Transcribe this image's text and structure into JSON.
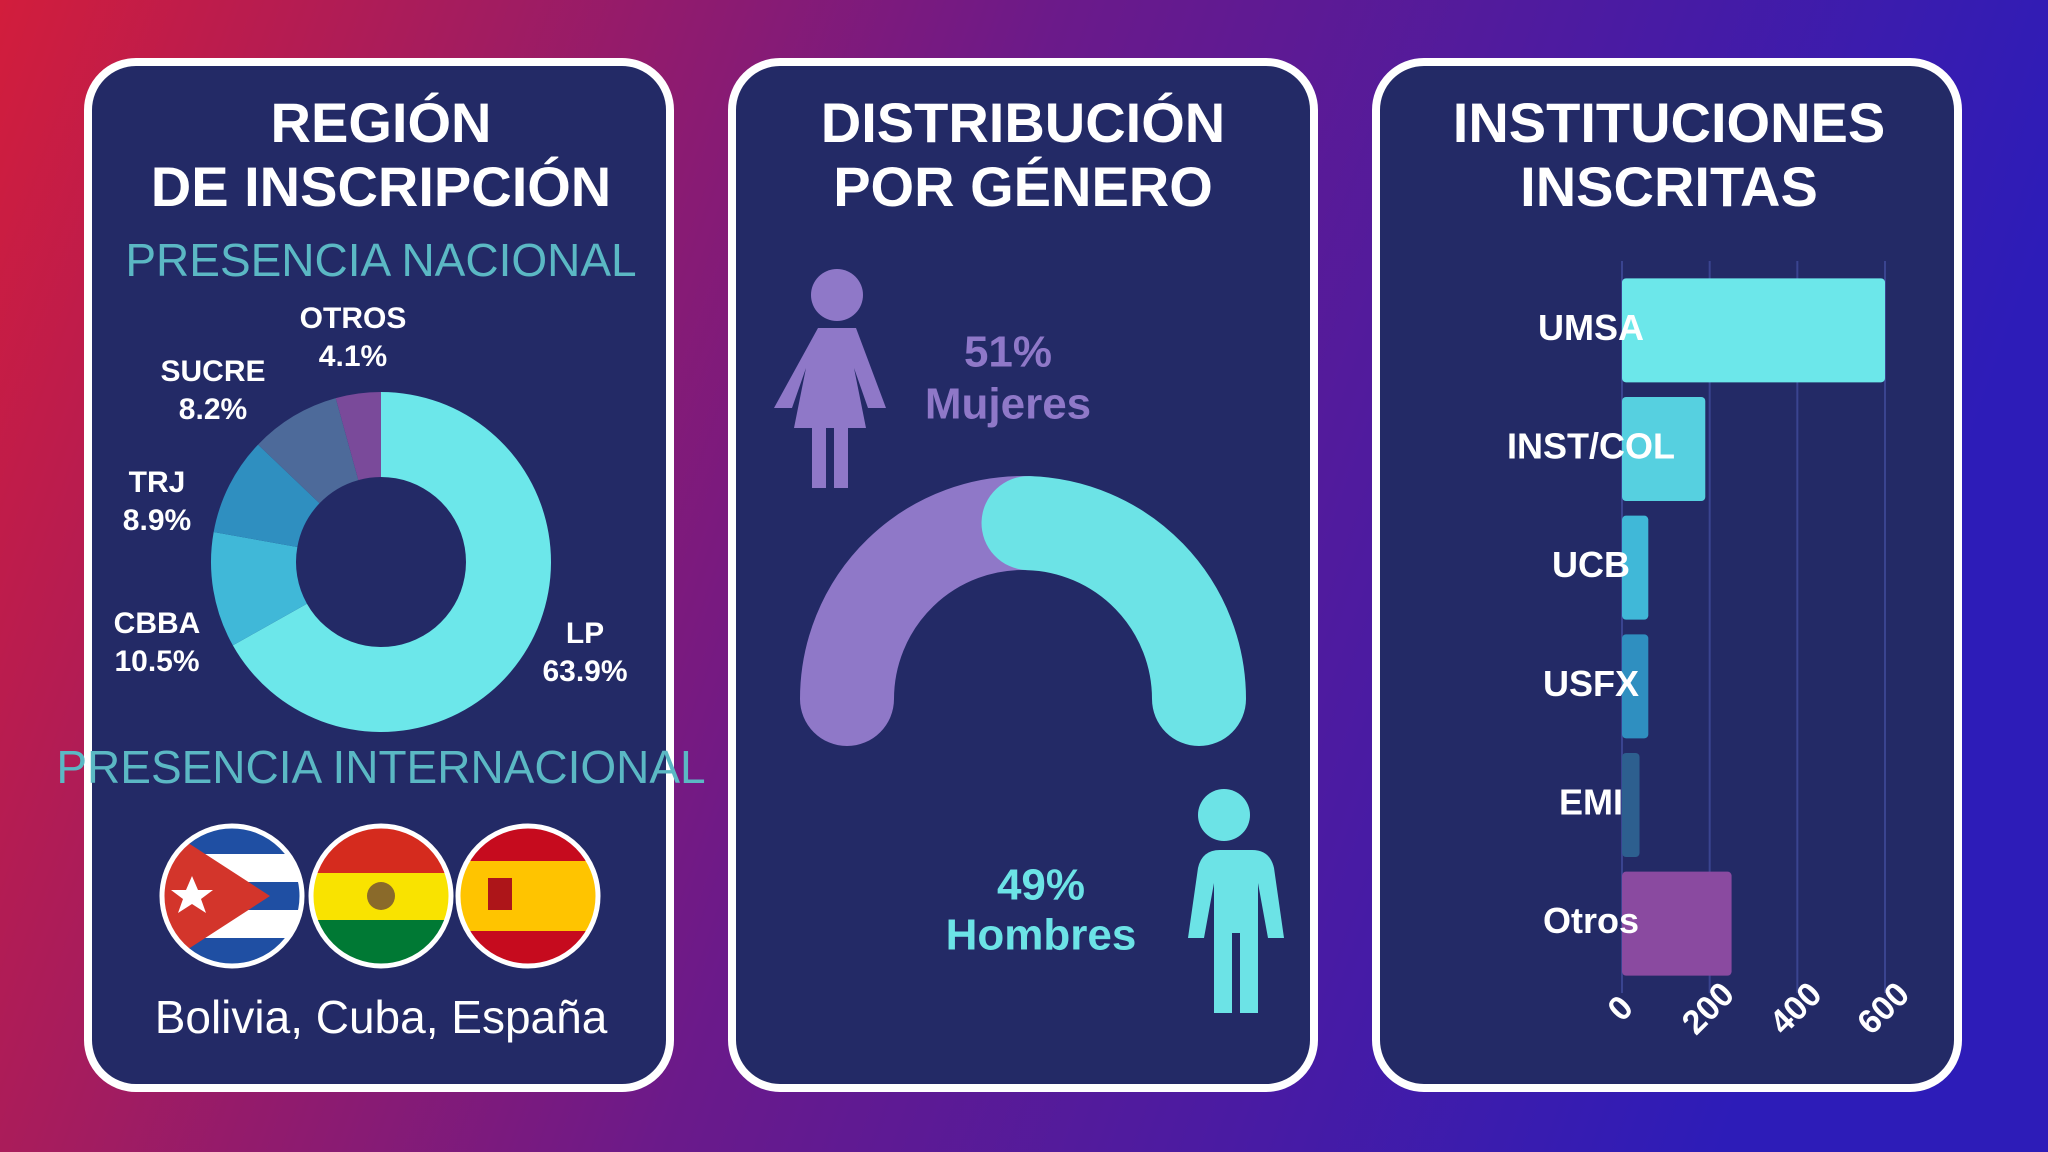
{
  "chart_data": [
    {
      "type": "donut",
      "title": [
        "REGIÓN",
        "DE INSCRIPCIÓN"
      ],
      "subtitle": "PRESENCIA NACIONAL",
      "categories": [
        "LP",
        "CBBA",
        "TRJ",
        "SUCRE",
        "OTROS"
      ],
      "values": [
        63.9,
        10.5,
        8.9,
        8.2,
        4.1
      ],
      "value_labels": [
        "63.9%",
        "10.5%",
        "8.9%",
        "8.2%",
        "4.1%"
      ],
      "colors": [
        "#6ce7ea",
        "#40b8d8",
        "#2f8fc0",
        "#4d6a9a",
        "#7a4a9a"
      ],
      "annotation": "PRESENCIA INTERNACIONAL",
      "countries": "Bolivia, Cuba, España"
    },
    {
      "type": "gender",
      "title": [
        "DISTRIBUCIÓN",
        "POR GÉNERO"
      ],
      "categories": [
        "Mujeres",
        "Hombres"
      ],
      "values": [
        51,
        49
      ],
      "value_labels": [
        "51%",
        "49%"
      ],
      "colors": [
        "#8f78c8",
        "#6ce3e6"
      ]
    },
    {
      "type": "hbar",
      "title": [
        "INSTITUCIONES",
        "INSCRITAS"
      ],
      "categories": [
        "UMSA",
        "INST/COL",
        "UCB",
        "USFX",
        "EMI",
        "Otros"
      ],
      "values": [
        600,
        190,
        60,
        60,
        40,
        250
      ],
      "colors": [
        "#6ce7ea",
        "#56d0e0",
        "#40b8d8",
        "#2f8fc0",
        "#2d5f8f",
        "#8a4aa0"
      ],
      "xlim": [
        0,
        600
      ],
      "xticks": [
        0,
        200,
        400,
        600
      ],
      "grid": true
    }
  ]
}
